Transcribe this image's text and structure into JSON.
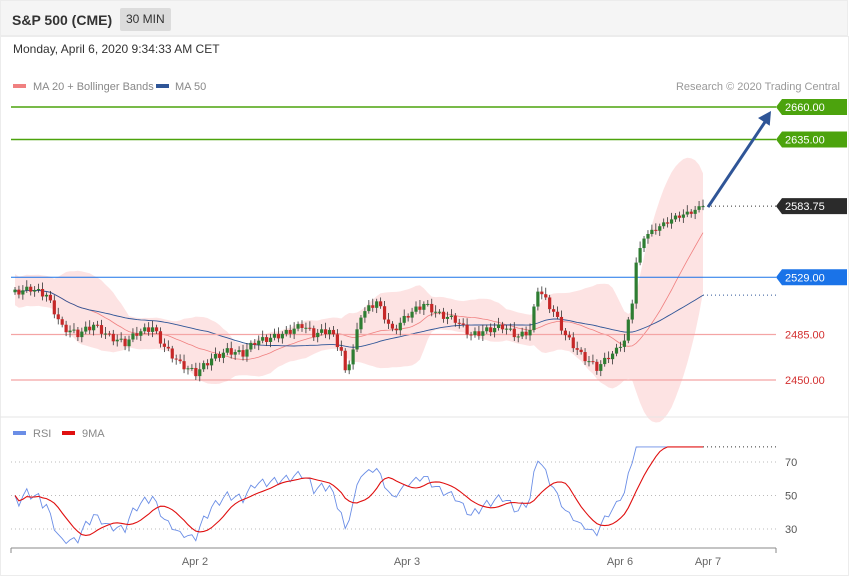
{
  "header": {
    "title": "S&P 500 (CME)",
    "interval": "30 MIN"
  },
  "datetime": "Monday, April 6, 2020 9:34:33 AM CET",
  "legend": {
    "items": [
      {
        "label": "MA 20 + Bollinger Bands",
        "color": "#f08080"
      },
      {
        "label": "MA 50",
        "color": "#2f5597"
      }
    ],
    "credit": "Research © 2020 Trading Central"
  },
  "colors": {
    "up_candle": "#2e7d32",
    "down_candle": "#c62828",
    "resistance": "#4ca30d",
    "support": "#f4a5a5",
    "pivot": "#1a73e8",
    "arrow": "#2f5597",
    "band_fill": "#fde0e0",
    "rsi": "#6b8ee6",
    "rsi_ma": "#e01010"
  },
  "chart_data": [
    {
      "type": "candlestick",
      "title": "S&P 500 (CME)",
      "ylim": [
        2430,
        2670
      ],
      "x_ticks": [
        "Apr 2",
        "Apr 3",
        "Apr 6",
        "Apr 7"
      ],
      "levels": [
        {
          "value": 2660.0,
          "label": "2660.00",
          "kind": "resistance"
        },
        {
          "value": 2635.0,
          "label": "2635.00",
          "kind": "resistance"
        },
        {
          "value": 2583.75,
          "label": "2583.75",
          "kind": "last"
        },
        {
          "value": 2529.0,
          "label": "2529.00",
          "kind": "pivot"
        },
        {
          "value": 2485.0,
          "label": "2485.00",
          "kind": "support"
        },
        {
          "value": 2450.0,
          "label": "2450.00",
          "kind": "support"
        }
      ],
      "arrow": {
        "from": 2583,
        "to": 2660
      },
      "anchors": [
        [
          0,
          2517
        ],
        [
          4,
          2520
        ],
        [
          8,
          2515
        ],
        [
          12,
          2490
        ],
        [
          16,
          2485
        ],
        [
          20,
          2492
        ],
        [
          24,
          2483
        ],
        [
          28,
          2478
        ],
        [
          31,
          2486
        ],
        [
          35,
          2490
        ],
        [
          38,
          2475
        ],
        [
          42,
          2462
        ],
        [
          46,
          2455
        ],
        [
          50,
          2466
        ],
        [
          54,
          2472
        ],
        [
          58,
          2470
        ],
        [
          61,
          2479
        ],
        [
          65,
          2482
        ],
        [
          69,
          2486
        ],
        [
          73,
          2492
        ],
        [
          76,
          2485
        ],
        [
          80,
          2488
        ],
        [
          83,
          2472
        ],
        [
          84,
          2455
        ],
        [
          86,
          2473
        ],
        [
          88,
          2500
        ],
        [
          92,
          2510
        ],
        [
          96,
          2487
        ],
        [
          100,
          2500
        ],
        [
          104,
          2508
        ],
        [
          108,
          2500
        ],
        [
          112,
          2496
        ],
        [
          116,
          2484
        ],
        [
          120,
          2488
        ],
        [
          124,
          2491
        ],
        [
          128,
          2483
        ],
        [
          131,
          2488
        ],
        [
          133,
          2520
        ],
        [
          137,
          2502
        ],
        [
          140,
          2484
        ],
        [
          144,
          2469
        ],
        [
          148,
          2459
        ],
        [
          152,
          2470
        ],
        [
          155,
          2480
        ],
        [
          157,
          2510
        ],
        [
          158,
          2540
        ],
        [
          160,
          2560
        ],
        [
          164,
          2568
        ],
        [
          168,
          2575
        ],
        [
          172,
          2579
        ],
        [
          175,
          2583.75
        ]
      ]
    },
    {
      "type": "line",
      "title": "RSI",
      "yticks": [
        30,
        50,
        70
      ],
      "series": [
        {
          "name": "RSI",
          "color": "#6b8ee6"
        },
        {
          "name": "9MA",
          "color": "#e01010"
        }
      ]
    }
  ]
}
